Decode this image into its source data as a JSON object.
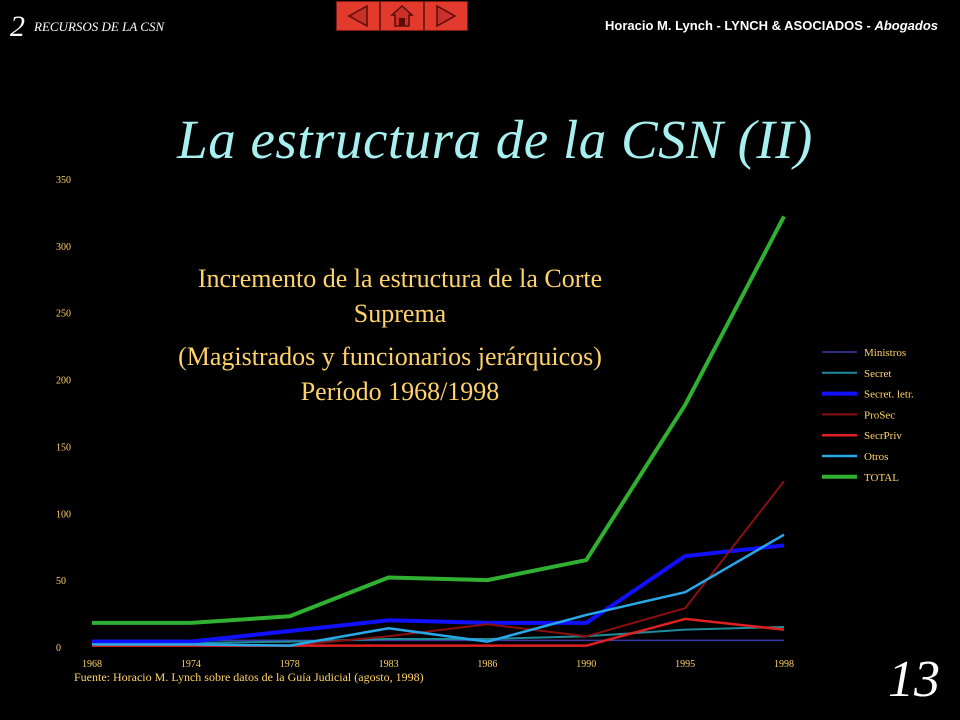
{
  "header": {
    "section_num": "2",
    "section": "RECURSOS DE LA CSN",
    "author": "Horacio M. Lynch -  LYNCH & ASOCIADOS - ",
    "author_role": "Abogados"
  },
  "nav": {
    "prev_icon": "left-triangle",
    "home_icon": "house",
    "next_icon": "right-triangle"
  },
  "slide": {
    "title": "La estructura de la CSN (II)",
    "page_number": "13"
  },
  "colors": {
    "background": "#000000",
    "title": "#a8f0f0",
    "chart_text": "#ffd36a",
    "nav": "#e23b2e"
  },
  "chart_data": {
    "type": "line",
    "title_lines": [
      "Incremento de la estructura de la Corte",
      "Suprema",
      "(Magistrados y funcionarios jerárquicos)",
      "Período 1968/1998"
    ],
    "x": [
      "1968",
      "1974",
      "1978",
      "1983",
      "1986",
      "1990",
      "1995",
      "1998"
    ],
    "ylim": [
      0,
      350
    ],
    "yticks": [
      0,
      50,
      100,
      150,
      200,
      250,
      300,
      350
    ],
    "legend_position": "right",
    "source": "Fuente: Horacio M. Lynch sobre datos de la Guía Judicial (agosto, 1998)",
    "series": [
      {
        "name": "Ministros",
        "color": "#3a3aa8",
        "width": 1.5,
        "values": [
          5,
          5,
          5,
          5,
          5,
          5,
          5,
          5
        ]
      },
      {
        "name": "Secret",
        "color": "#1e8a9a",
        "width": 2,
        "values": [
          3,
          3,
          4,
          6,
          6,
          8,
          13,
          15
        ]
      },
      {
        "name": "Secret. letr.",
        "color": "#1010ff",
        "width": 4,
        "values": [
          4,
          4,
          12,
          20,
          18,
          18,
          68,
          76
        ]
      },
      {
        "name": "ProSec",
        "color": "#8a1010",
        "width": 2,
        "values": [
          1,
          1,
          1,
          8,
          17,
          8,
          29,
          124
        ]
      },
      {
        "name": "SecrPriv",
        "color": "#e02020",
        "width": 2.5,
        "values": [
          1,
          1,
          1,
          1,
          1,
          1,
          21,
          13
        ]
      },
      {
        "name": "Otros",
        "color": "#28a8e8",
        "width": 2.5,
        "values": [
          2,
          2,
          1,
          14,
          4,
          24,
          41,
          84
        ]
      },
      {
        "name": "TOTAL",
        "color": "#30b030",
        "width": 4,
        "values": [
          18,
          18,
          23,
          52,
          50,
          65,
          181,
          322
        ]
      }
    ]
  }
}
